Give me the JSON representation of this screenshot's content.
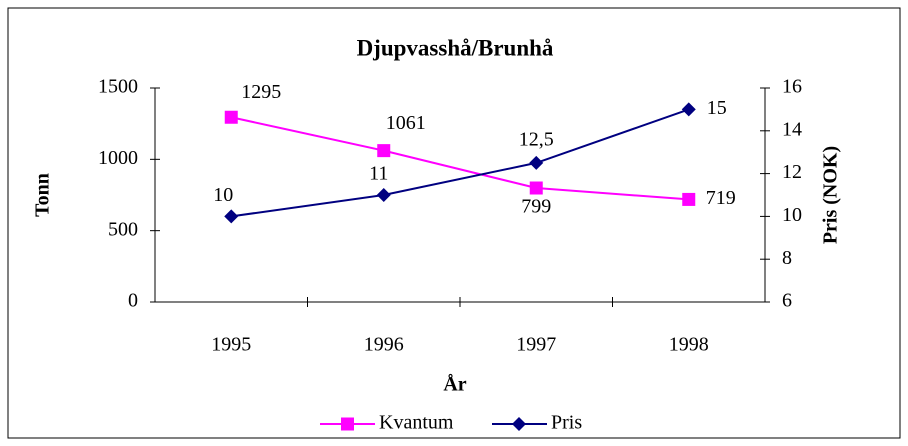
{
  "chart_data": {
    "type": "line",
    "title": "Djupvasshå/Brunhå",
    "x_label": "År",
    "y_label": "Tonn",
    "y2_label": "Pris (NOK)",
    "categories": [
      "1995",
      "1996",
      "1997",
      "1998"
    ],
    "ylim": [
      0,
      1500
    ],
    "yticks": [
      0,
      500,
      1000,
      1500
    ],
    "y2lim": [
      6,
      16
    ],
    "y2ticks": [
      6,
      8,
      10,
      12,
      14,
      16
    ],
    "legend": "bottom",
    "series": [
      {
        "name": "Kvantum",
        "color": "#ff00ff",
        "marker": "square",
        "values": [
          1295,
          1061,
          799,
          719
        ]
      },
      {
        "name": "Pris",
        "color": "#000080",
        "marker": "diamond",
        "axis": "y2",
        "values": [
          10,
          11,
          12.5,
          15
        ],
        "value_labels": [
          "10",
          "11",
          "12,5",
          "15"
        ]
      }
    ]
  }
}
